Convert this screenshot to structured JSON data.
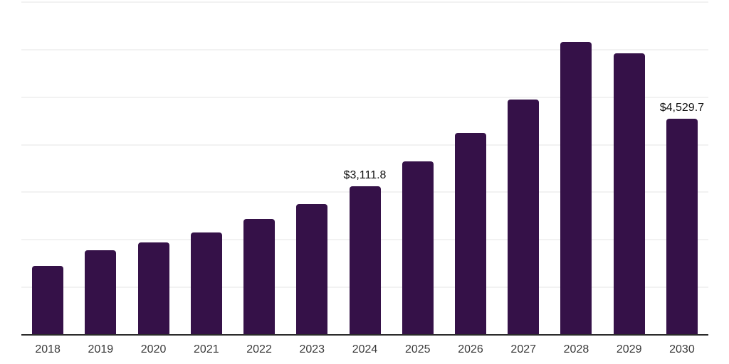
{
  "chart_data": {
    "type": "bar",
    "categories": [
      "2018",
      "2019",
      "2020",
      "2021",
      "2022",
      "2023",
      "2024",
      "2025",
      "2026",
      "2027",
      "2028",
      "2029",
      "2030"
    ],
    "values": [
      1443,
      1760,
      1925,
      2135,
      2420,
      2737,
      3111.8,
      3640,
      4227,
      4934,
      6147,
      5908,
      4529.7
    ],
    "data_labels": [
      "",
      "",
      "",
      "",
      "",
      "",
      "$3,111.8",
      "",
      "",
      "",
      "",
      "",
      "$4,529.7"
    ],
    "labeled_points": [
      {
        "category": "2024",
        "label": "$3,111.8"
      },
      {
        "category": "2030",
        "label": "$4,529.7"
      }
    ],
    "title": "",
    "xlabel": "",
    "ylabel": "",
    "ylim": [
      0,
      7000
    ],
    "gridline_step": 1000,
    "grid": "horizontal-only",
    "y_tick_labels_visible": false,
    "legend": "none",
    "colors": {
      "bar": "#351148",
      "axis_line": "#2b2b2b",
      "gridline": "#f2f2f2",
      "tick_label": "#3a3a3a",
      "data_label": "#111111",
      "background": "#ffffff"
    }
  }
}
